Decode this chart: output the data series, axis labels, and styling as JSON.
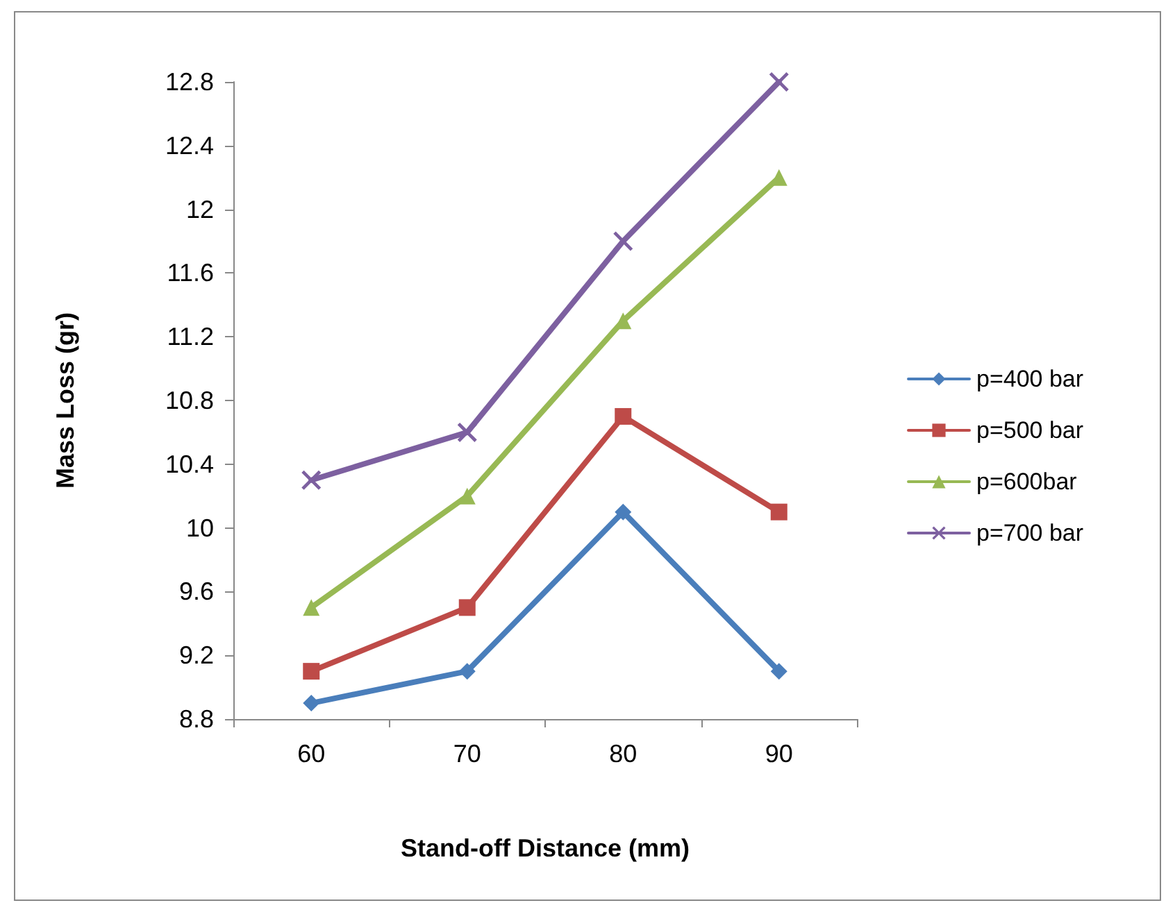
{
  "chart_data": {
    "type": "line",
    "xlabel": "Stand-off Distance (mm)",
    "ylabel": "Mass Loss (gr)",
    "categories": [
      "60",
      "70",
      "80",
      "90"
    ],
    "series": [
      {
        "name": "p=400 bar",
        "color": "#4a7ebb",
        "marker": "diamond",
        "values": [
          8.9,
          9.1,
          10.1,
          9.1
        ]
      },
      {
        "name": "p=500 bar",
        "color": "#be4b48",
        "marker": "square",
        "values": [
          9.1,
          9.5,
          10.7,
          10.1
        ]
      },
      {
        "name": "p=600bar",
        "color": "#98b954",
        "marker": "triangle",
        "values": [
          9.5,
          10.2,
          11.3,
          12.2
        ]
      },
      {
        "name": "p=700 bar",
        "color": "#7d60a0",
        "marker": "cross",
        "values": [
          10.3,
          10.6,
          11.8,
          12.8
        ]
      }
    ],
    "ylim": [
      8.8,
      12.8
    ],
    "yticks": [
      8.8,
      9.2,
      9.6,
      10,
      10.4,
      10.8,
      11.2,
      11.6,
      12,
      12.4,
      12.8
    ],
    "grid": false,
    "legend": "right",
    "line_style": "solid"
  }
}
